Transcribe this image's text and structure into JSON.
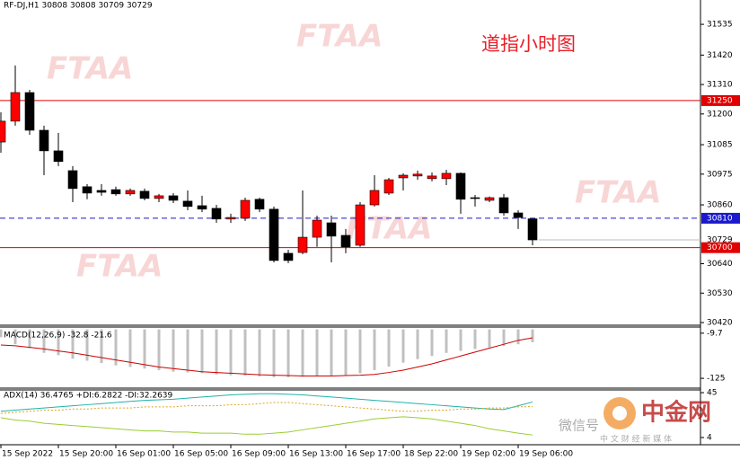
{
  "chart_data": [
    {
      "type": "candlestick",
      "title": "RF-DJ,H1  30808 30808 30709 30729",
      "annotation": "道指小时图",
      "watermark": "FTAA",
      "categories": [
        "15 Sep 2022",
        null,
        null,
        null,
        "15 Sep 20:00",
        null,
        null,
        null,
        "16 Sep 01:00",
        null,
        null,
        null,
        "16 Sep 05:00",
        null,
        null,
        null,
        "16 Sep 09:00",
        null,
        null,
        null,
        "16 Sep 13:00",
        null,
        null,
        null,
        "16 Sep 17:00",
        null,
        null,
        null,
        "18 Sep 22:00",
        null,
        null,
        null,
        "19 Sep 02:00",
        null,
        null,
        null,
        "19 Sep 06:00",
        null
      ],
      "open": [
        31095,
        31173,
        31280,
        31139,
        31062,
        30988,
        30928,
        30914,
        30917,
        30901,
        30911,
        30884,
        30894,
        30874,
        30857,
        30847,
        30807,
        30810,
        30881,
        30844,
        30679,
        30682,
        30739,
        30793,
        30746,
        30709,
        30860,
        30904,
        30961,
        30968,
        30958,
        30958,
        30978,
        30887,
        30877,
        30887,
        30830,
        30808
      ],
      "high": [
        31206,
        31381,
        31290,
        31156,
        31129,
        31005,
        30938,
        30938,
        30928,
        30921,
        30921,
        30901,
        30904,
        30914,
        30894,
        30860,
        30827,
        30887,
        30887,
        30854,
        30692,
        30914,
        30820,
        30820,
        30770,
        30870,
        30971,
        30961,
        30978,
        30988,
        30981,
        30991,
        30981,
        30897,
        30891,
        30901,
        30840,
        30808
      ],
      "low": [
        31055,
        31156,
        31122,
        30971,
        31005,
        30870,
        30881,
        30894,
        30894,
        30894,
        30877,
        30870,
        30867,
        30840,
        30833,
        30793,
        30793,
        30800,
        30833,
        30645,
        30642,
        30676,
        30703,
        30645,
        30679,
        30703,
        30854,
        30897,
        30914,
        30954,
        30948,
        30934,
        30827,
        30854,
        30870,
        30820,
        30770,
        30709
      ],
      "close": [
        31173,
        31280,
        31139,
        31062,
        31022,
        30921,
        30904,
        30907,
        30901,
        30914,
        30884,
        30894,
        30877,
        30854,
        30844,
        30807,
        30813,
        30877,
        30844,
        30652,
        30652,
        30739,
        30803,
        30743,
        30703,
        30860,
        30914,
        30954,
        30971,
        30975,
        30968,
        30978,
        30881,
        30884,
        30887,
        30830,
        30813,
        30729
      ],
      "up_color": "#ff0000",
      "down_color": "#000000",
      "ylim": [
        30410,
        31626
      ],
      "yticks": [
        31535,
        31420,
        31310,
        31200,
        31085,
        30975,
        30860,
        30640,
        30530,
        30420
      ],
      "hlines": [
        {
          "value": 31250,
          "color": "#e00000",
          "dashed": false
        },
        {
          "value": 30810,
          "color": "#1a1acc",
          "dashed": true
        },
        {
          "value": 30700,
          "color": "#e00000",
          "dashed": false
        }
      ],
      "last_price": 30729
    },
    {
      "type": "macd",
      "title": "MACD(12,26,9) -32.8 -21.6",
      "histogram": [
        -20,
        -38,
        -48,
        -60,
        -66,
        -75,
        -80,
        -86,
        -92,
        -96,
        -100,
        -104,
        -108,
        -110,
        -112,
        -115,
        -117,
        -118,
        -120,
        -122,
        -122,
        -121,
        -119,
        -118,
        -117,
        -112,
        -104,
        -95,
        -85,
        -76,
        -68,
        -60,
        -55,
        -50,
        -46,
        -42,
        -38,
        -32.8
      ],
      "signal": [
        -40,
        -42,
        -46,
        -50,
        -55,
        -60,
        -66,
        -72,
        -78,
        -84,
        -90,
        -96,
        -100,
        -104,
        -108,
        -110,
        -112,
        -114,
        -116,
        -117,
        -118,
        -119,
        -119,
        -119,
        -118,
        -117,
        -115,
        -110,
        -104,
        -96,
        -88,
        -78,
        -68,
        -58,
        -48,
        -38,
        -28,
        -21.6
      ],
      "histogram_color": "#c0c0c0",
      "signal_color": "#cc0000",
      "ylim": [
        -150,
        6
      ],
      "yticks": [
        -9.7,
        -125
      ]
    },
    {
      "type": "adx",
      "title": "ADX(14) 36.4765 +DI:6.2822 -DI:32.2639",
      "lines": [
        {
          "color": "#20b2aa",
          "dotted": false,
          "values": [
            28,
            29,
            30,
            31,
            32,
            33,
            34,
            35,
            36,
            37,
            38,
            38.5,
            39,
            40,
            41,
            42,
            43,
            43.5,
            44,
            44,
            43.5,
            43,
            42,
            41,
            40,
            39,
            38,
            37,
            36,
            35,
            34,
            33,
            32,
            31,
            30,
            29.5,
            33,
            36.4765
          ]
        },
        {
          "color": "#9acd32",
          "dotted": false,
          "values": [
            22,
            20,
            19,
            17,
            16,
            15,
            14,
            13,
            12,
            11,
            10,
            10,
            9,
            9,
            8,
            8,
            8,
            7,
            7,
            8,
            9,
            11,
            13,
            15,
            17,
            19,
            21,
            22,
            23,
            22,
            21,
            19,
            17,
            15,
            12,
            10,
            8,
            6.2822
          ]
        },
        {
          "color": "#daa520",
          "dotted": true,
          "values": [
            26,
            27,
            28,
            29,
            29,
            30,
            30,
            31,
            31,
            31,
            32,
            32,
            32,
            33,
            33,
            33,
            34,
            34,
            35,
            36,
            36,
            35,
            34,
            33,
            32,
            31,
            30,
            29,
            28,
            28,
            29,
            29,
            30,
            30,
            31,
            31,
            32,
            32.2639
          ]
        }
      ],
      "ylim": [
        -2.6,
        47.5
      ],
      "yticks": [
        45,
        4
      ]
    },
    {
      "type": "watermark",
      "logo": "中金网",
      "slogan": "中 文 财 经 新 媒 体",
      "wechat": "微信号"
    }
  ]
}
